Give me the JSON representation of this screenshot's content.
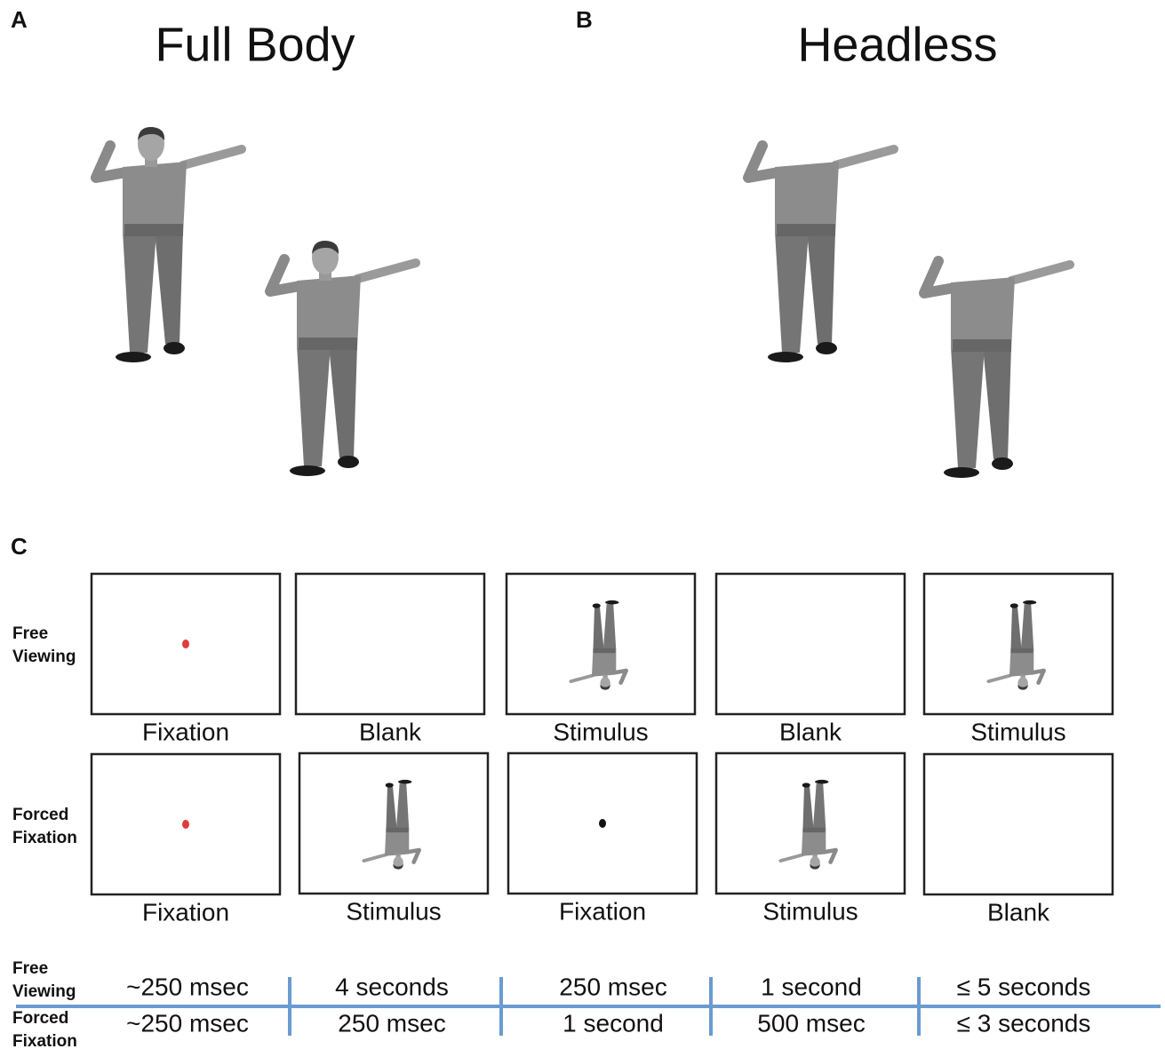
{
  "panels": [
    {
      "letter": "A",
      "title": "Full Body"
    },
    {
      "letter": "B",
      "title": "Headless"
    },
    {
      "letter": "C"
    }
  ],
  "trials": [
    {
      "label": [
        "Free",
        "Viewing"
      ],
      "frames": [
        "Fixation",
        "Blank",
        "Stimulus",
        "Blank",
        "Stimulus"
      ]
    },
    {
      "label": [
        "Forced",
        "Fixation"
      ],
      "frames": [
        "Fixation",
        "Stimulus",
        "Fixation",
        "Stimulus",
        "Blank"
      ]
    }
  ],
  "timeline": [
    {
      "label": [
        "Free",
        "Viewing"
      ],
      "durations": [
        "~250 msec",
        "4 seconds",
        "250 msec",
        "1 second",
        "≤ 5 seconds"
      ]
    },
    {
      "label": [
        "Forced",
        "Fixation"
      ],
      "durations": [
        "~250 msec",
        "250 msec",
        "1 second",
        "500 msec",
        "≤ 3 seconds"
      ]
    }
  ]
}
